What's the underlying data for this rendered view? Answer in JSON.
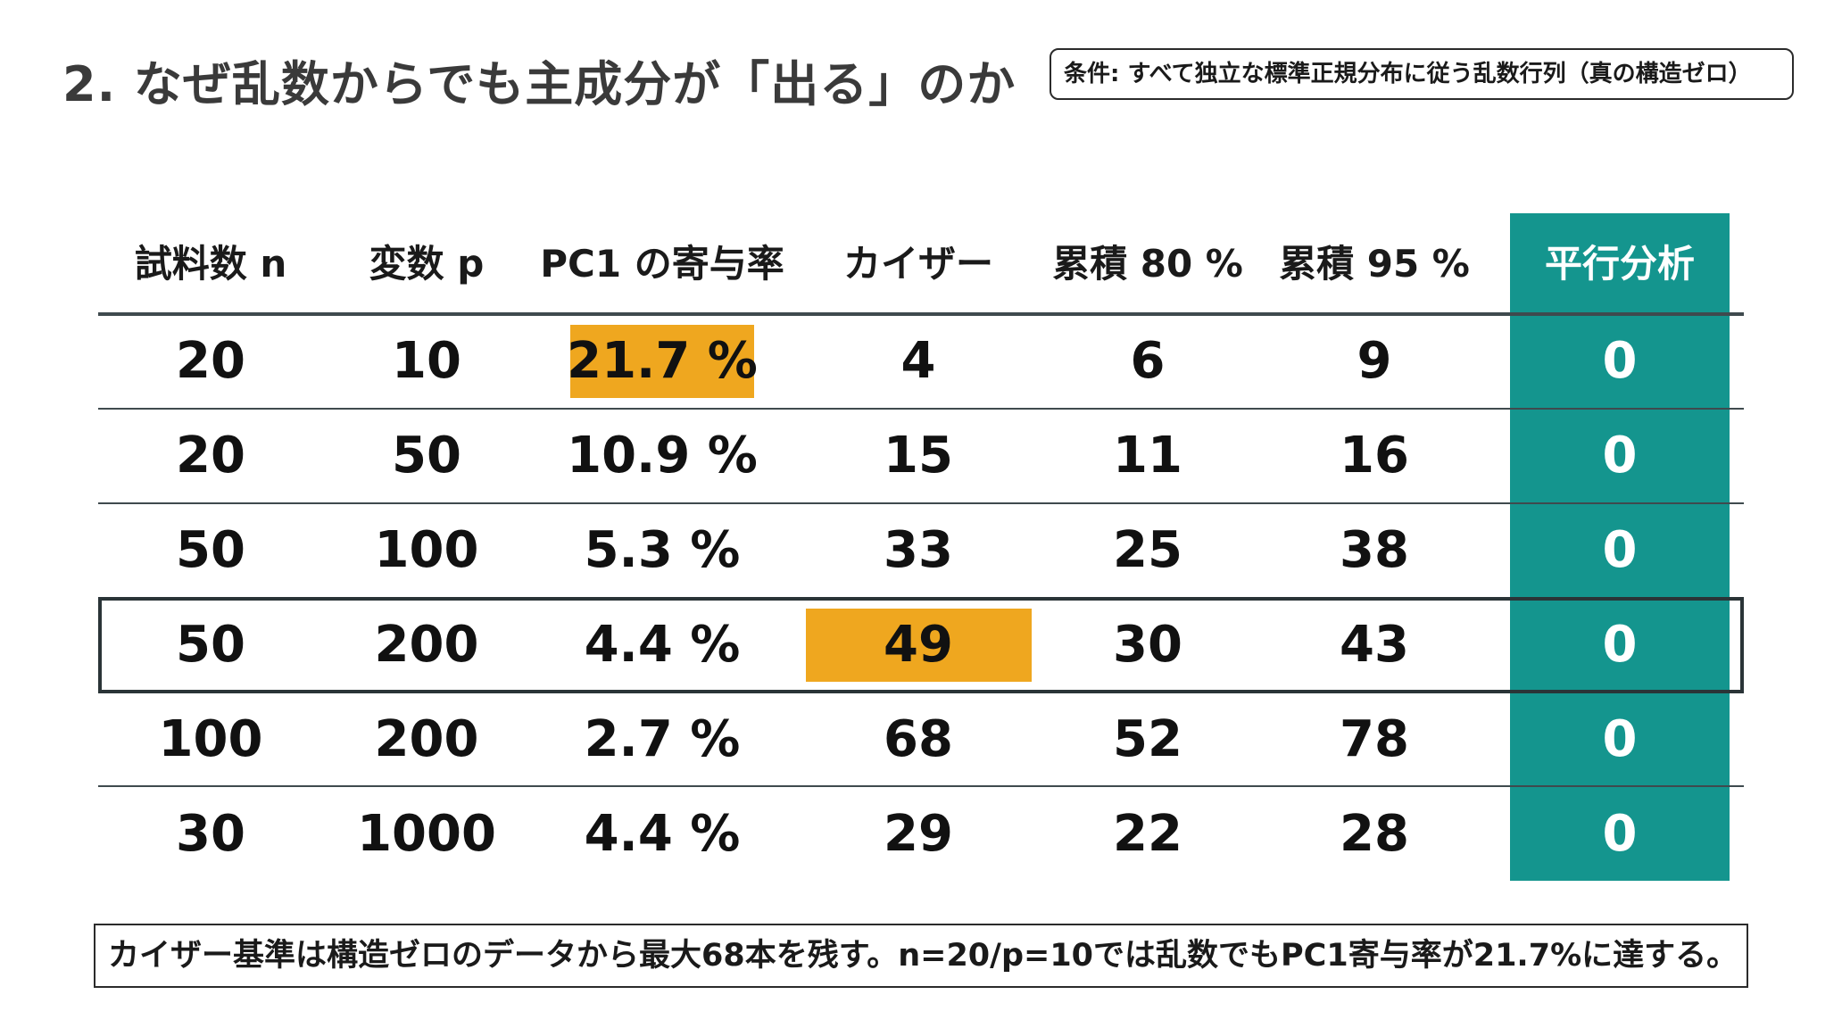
{
  "title": "2. なぜ乱数からでも主成分が「出る」のか",
  "condition": "条件: すべて独立な標準正規分布に従う乱数行列（真の構造ゼロ）",
  "table": {
    "headers": [
      "試料数 n",
      "変数 p",
      "PC1 の寄与率",
      "カイザー",
      "累積 80 %",
      "累積 95 %",
      "平行分析"
    ],
    "rows": [
      [
        "20",
        "10",
        "21.7 %",
        "4",
        "6",
        "9",
        "0"
      ],
      [
        "20",
        "50",
        "10.9 %",
        "15",
        "11",
        "16",
        "0"
      ],
      [
        "50",
        "100",
        "5.3 %",
        "33",
        "25",
        "38",
        "0"
      ],
      [
        "50",
        "200",
        "4.4 %",
        "49",
        "30",
        "43",
        "0"
      ],
      [
        "100",
        "200",
        "2.7 %",
        "68",
        "52",
        "78",
        "0"
      ],
      [
        "30",
        "1000",
        "4.4 %",
        "29",
        "22",
        "28",
        "0"
      ]
    ]
  },
  "colors": {
    "accent_teal": "#14958e",
    "highlight_orange": "#efa71f",
    "rule": "#3f4a4e"
  },
  "note": "カイザー基準は構造ゼロのデータから最大68本を残す。n=20/p=10では乱数でもPC1寄与率が21.7%に達する。"
}
